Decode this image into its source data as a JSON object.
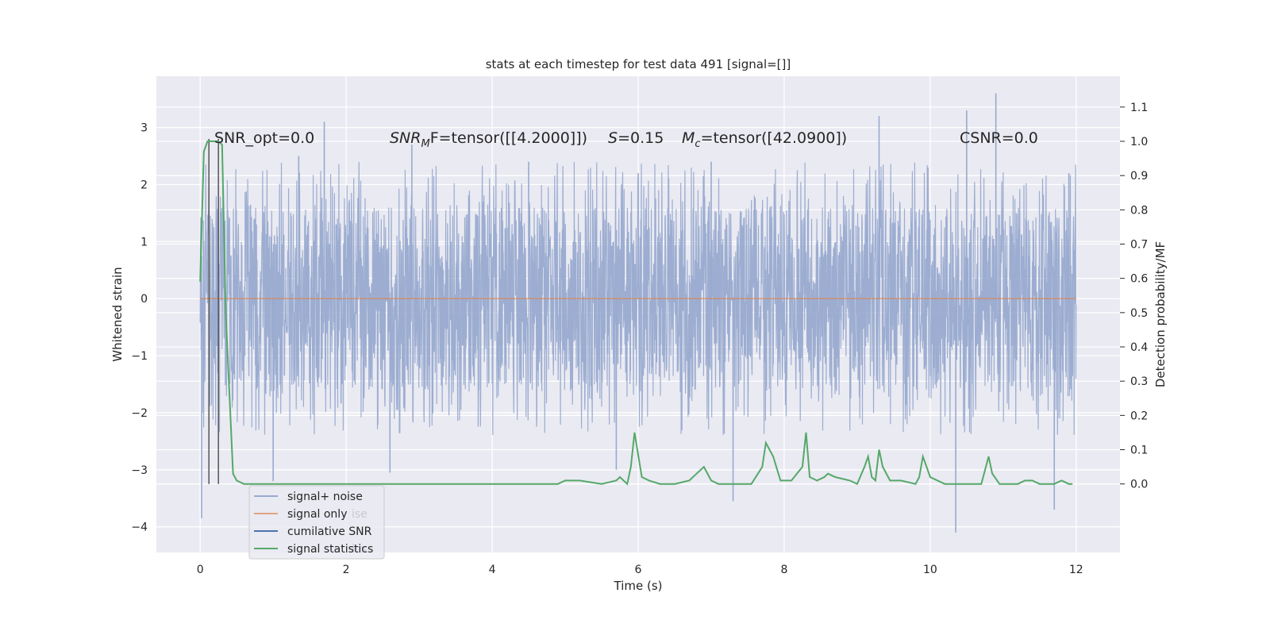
{
  "chart_data": {
    "type": "line",
    "title": "stats at each timestep for test data 491 [signal=[]]",
    "xlabel": "Time (s)",
    "ylabel": "Whitened strain",
    "y2label": "Detection probability/MF",
    "xlim": [
      -0.6,
      12.6
    ],
    "ylim": [
      -4.45,
      3.9
    ],
    "y2lim": [
      -0.2,
      1.19
    ],
    "x_ticks": [
      0,
      2,
      4,
      6,
      8,
      10,
      12
    ],
    "y_ticks": [
      -4,
      -3,
      -2,
      -1,
      0,
      1,
      2,
      3
    ],
    "y2_ticks": [
      0.0,
      0.1,
      0.2,
      0.3,
      0.4,
      0.5,
      0.6,
      0.7,
      0.8,
      0.9,
      1.0,
      1.1
    ],
    "x_tick_labels": [
      "0",
      "2",
      "4",
      "6",
      "8",
      "10",
      "12"
    ],
    "y_tick_labels": [
      "−4",
      "−3",
      "−2",
      "−1",
      "0",
      "1",
      "2",
      "3"
    ],
    "y2_tick_labels": [
      "0.0",
      "0.1",
      "0.2",
      "0.3",
      "0.4",
      "0.5",
      "0.6",
      "0.7",
      "0.8",
      "0.9",
      "1.0",
      "1.1"
    ],
    "grid": true,
    "legend_position": "lower-left",
    "colors": {
      "noise": "#98aacf",
      "signal": "#dd8452",
      "cumulative": "#4c72b0",
      "statistics": "#55a868",
      "markers": "#555555",
      "background": "#eaeaf2"
    },
    "annotations": {
      "snr_opt": "SNR_opt=0.0",
      "snr_mf_base": "SNR",
      "snr_mf_sub": "M",
      "snr_mf_rest": "F=tensor([[4.2000]])",
      "s_letter": "S",
      "s_value": "=0.15",
      "mc_letter": "M",
      "mc_sub": "c",
      "mc_value": "=tensor([42.0900])",
      "csnr": "CSNR=0.0"
    },
    "series": [
      {
        "name": "signal+ noise",
        "axis": "left",
        "envelope": {
          "x_range": [
            0,
            12
          ],
          "typical_range": [
            -1.5,
            1.5
          ],
          "peaks_max": [
            [
              1.35,
              2.5
            ],
            [
              1.7,
              3.1
            ],
            [
              2.9,
              2.7
            ],
            [
              4.5,
              2.4
            ],
            [
              6.0,
              2.2
            ],
            [
              7.0,
              2.4
            ],
            [
              9.3,
              3.2
            ],
            [
              10.5,
              3.3
            ],
            [
              10.9,
              3.6
            ],
            [
              11.9,
              2.2
            ]
          ],
          "peaks_min": [
            [
              0.02,
              -3.85
            ],
            [
              1.0,
              -3.2
            ],
            [
              2.6,
              -3.05
            ],
            [
              5.7,
              -3.0
            ],
            [
              7.3,
              -3.55
            ],
            [
              10.35,
              -4.1
            ],
            [
              11.7,
              -3.7
            ]
          ]
        }
      },
      {
        "name": "signal only",
        "axis": "left",
        "x": [
          0,
          12
        ],
        "y": [
          0,
          0
        ]
      },
      {
        "name": "cumilative SNR",
        "axis": "left",
        "x": [],
        "y": []
      },
      {
        "name": "signal statistics",
        "axis": "right",
        "x": [
          0.0,
          0.05,
          0.1,
          0.15,
          0.2,
          0.25,
          0.3,
          0.35,
          0.45,
          0.5,
          0.6,
          0.8,
          1.0,
          1.2,
          1.5,
          2.0,
          2.5,
          3.0,
          3.5,
          4.0,
          4.5,
          4.9,
          5.0,
          5.2,
          5.5,
          5.7,
          5.75,
          5.85,
          5.9,
          5.95,
          6.05,
          6.15,
          6.3,
          6.5,
          6.7,
          6.8,
          6.9,
          7.0,
          7.1,
          7.2,
          7.3,
          7.4,
          7.55,
          7.7,
          7.75,
          7.85,
          7.95,
          8.1,
          8.25,
          8.3,
          8.35,
          8.45,
          8.55,
          8.6,
          8.7,
          8.9,
          9.0,
          9.1,
          9.15,
          9.2,
          9.25,
          9.3,
          9.35,
          9.45,
          9.6,
          9.8,
          9.85,
          9.9,
          10.0,
          10.2,
          10.4,
          10.55,
          10.7,
          10.8,
          10.85,
          10.95,
          11.1,
          11.2,
          11.3,
          11.4,
          11.5,
          11.6,
          11.7,
          11.8,
          11.9,
          11.95
        ],
        "y": [
          0.59,
          0.97,
          1.0,
          1.0,
          1.0,
          1.0,
          0.99,
          0.5,
          0.03,
          0.01,
          0.0,
          0.0,
          0.0,
          0.0,
          0.0,
          0.0,
          0.0,
          0.0,
          0.0,
          0.0,
          0.0,
          0.0,
          0.01,
          0.01,
          0.0,
          0.01,
          0.02,
          0.0,
          0.05,
          0.15,
          0.02,
          0.01,
          0.0,
          0.0,
          0.01,
          0.03,
          0.05,
          0.01,
          0.0,
          0.0,
          0.0,
          0.0,
          0.0,
          0.05,
          0.12,
          0.08,
          0.01,
          0.01,
          0.05,
          0.15,
          0.02,
          0.01,
          0.02,
          0.03,
          0.02,
          0.01,
          0.0,
          0.05,
          0.08,
          0.02,
          0.01,
          0.1,
          0.05,
          0.01,
          0.01,
          0.0,
          0.02,
          0.08,
          0.02,
          0.0,
          0.0,
          0.0,
          0.0,
          0.08,
          0.03,
          0.0,
          0.0,
          0.0,
          0.01,
          0.01,
          0.0,
          0.0,
          0.0,
          0.01,
          0.0,
          0.0
        ]
      }
    ],
    "vertical_markers": {
      "x": [
        0.12,
        0.25
      ],
      "from": -3.25,
      "to": 2.8
    },
    "legend": {
      "entries": [
        "signal+ noise",
        "signal only",
        "cumilative SNR",
        "signal statistics"
      ],
      "ghost_texts": [
        "ise",
        "ics"
      ]
    }
  }
}
